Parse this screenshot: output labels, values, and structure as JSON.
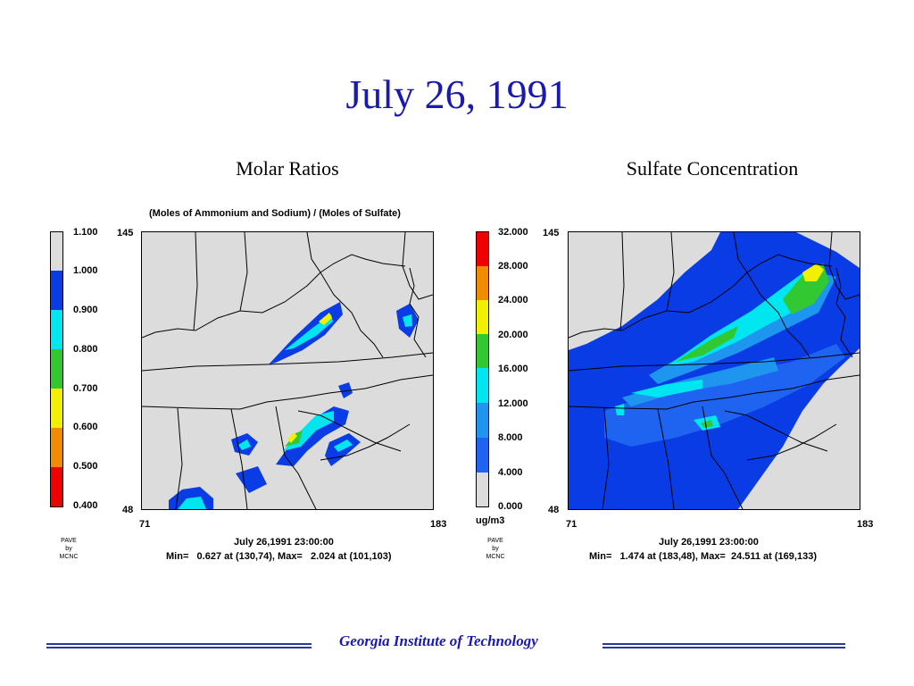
{
  "title": "July 26, 1991",
  "panels": [
    {
      "heading": "Molar Ratios",
      "subtitle": "(Moles of Ammonium and Sodium) / (Moles of Sulfate)",
      "legend": {
        "labels": [
          "1.100",
          "1.000",
          "0.900",
          "0.800",
          "0.700",
          "0.600",
          "0.500",
          "0.400"
        ],
        "colors": [
          "#dcdcdc",
          "#0a3ce6",
          "#00e6f0",
          "#32c832",
          "#f0f000",
          "#f08c00",
          "#f00000"
        ],
        "unit": ""
      },
      "axes": {
        "y_top": "145",
        "y_bottom": "48",
        "x_left": "71",
        "x_right": "183"
      },
      "credit": [
        "PAVE",
        "by",
        "MCNC"
      ],
      "timestamp": "July 26,1991 23:00:00",
      "minmax": "Min=   0.627 at (130,74), Max=   2.024 at (101,103)"
    },
    {
      "heading": "Sulfate Concentration",
      "subtitle": "",
      "legend": {
        "labels": [
          "32.000",
          "28.000",
          "24.000",
          "20.000",
          "16.000",
          "12.000",
          "8.000",
          "4.000",
          "0.000"
        ],
        "colors": [
          "#f00000",
          "#f08c00",
          "#f0f000",
          "#32c832",
          "#00e6f0",
          "#1e96f0",
          "#1e64f0",
          "#0a3ce6",
          "#dcdcdc"
        ],
        "unit": "ug/m3"
      },
      "axes": {
        "y_top": "145",
        "y_bottom": "48",
        "x_left": "71",
        "x_right": "183"
      },
      "credit": [
        "PAVE",
        "by",
        "MCNC"
      ],
      "timestamp": "July 26,1991 23:00:00",
      "minmax": "Min=   1.474 at (183,48), Max=  24.511 at (169,133)"
    }
  ],
  "footer": "Georgia Institute of Technology"
}
